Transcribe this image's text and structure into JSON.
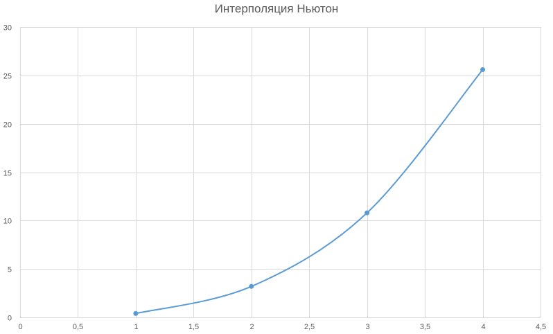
{
  "chart_data": {
    "type": "scatter",
    "title": "Интерполяция Ньютон",
    "xlabel": "",
    "ylabel": "",
    "xlim": [
      0,
      4.5
    ],
    "ylim": [
      0,
      30
    ],
    "x_ticks": [
      0,
      0.5,
      1,
      1.5,
      2,
      2.5,
      3,
      3.5,
      4,
      4.5
    ],
    "x_tick_labels": [
      "0",
      "0,5",
      "1",
      "1,5",
      "2",
      "2,5",
      "3",
      "3,5",
      "4",
      "4,5"
    ],
    "y_ticks": [
      0,
      5,
      10,
      15,
      20,
      25,
      30
    ],
    "y_tick_labels": [
      "0",
      "5",
      "10",
      "15",
      "20",
      "25",
      "30"
    ],
    "grid": true,
    "legend": "none",
    "series": [
      {
        "x": [
          1,
          2,
          3,
          4
        ],
        "y": [
          0.4,
          3.2,
          10.8,
          25.6
        ],
        "color": "#5b9bd5",
        "smooth": true,
        "markers": true
      }
    ]
  }
}
